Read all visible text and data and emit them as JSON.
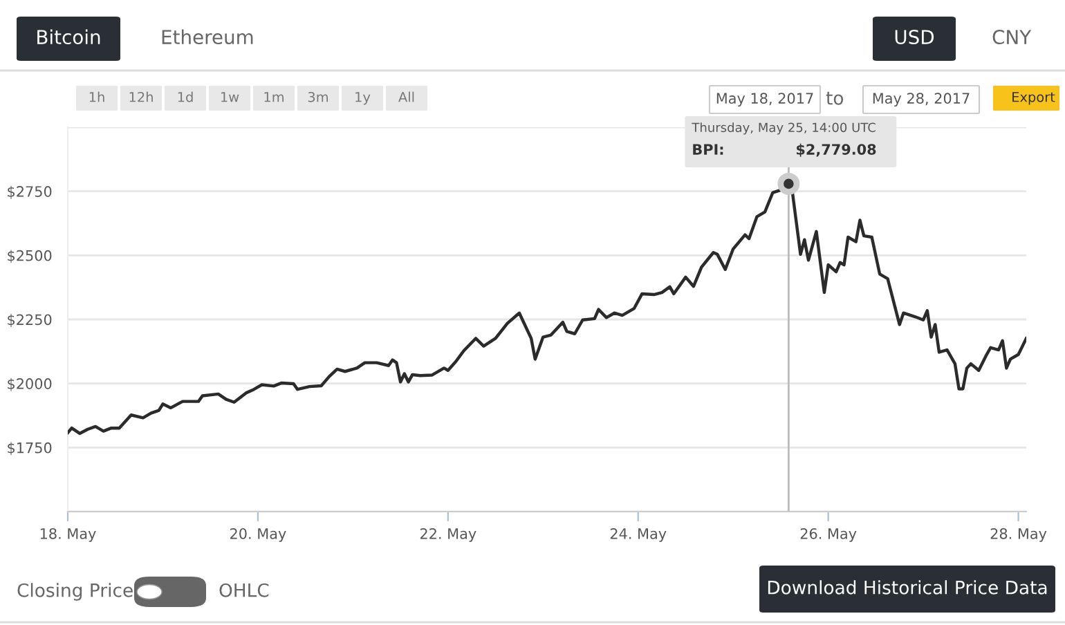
{
  "chart_data": {
    "type": "line",
    "x": [
      "2017-05-18T00:00",
      "2017-05-18T01:00",
      "2017-05-18T03:00",
      "2017-05-18T05:00",
      "2017-05-18T07:00",
      "2017-05-18T09:00",
      "2017-05-18T11:00",
      "2017-05-18T13:00",
      "2017-05-18T16:00",
      "2017-05-18T19:00",
      "2017-05-18T21:00",
      "2017-05-18T23:00",
      "2017-05-19T00:00",
      "2017-05-19T02:00",
      "2017-05-19T05:00",
      "2017-05-19T09:00",
      "2017-05-19T10:00",
      "2017-05-19T14:00",
      "2017-05-19T16:00",
      "2017-05-19T18:00",
      "2017-05-19T21:00",
      "2017-05-19T23:00",
      "2017-05-20T01:00",
      "2017-05-20T04:00",
      "2017-05-20T06:00",
      "2017-05-20T09:00",
      "2017-05-20T10:00",
      "2017-05-20T13:00",
      "2017-05-20T16:00",
      "2017-05-20T18:00",
      "2017-05-20T20:00",
      "2017-05-20T22:00",
      "2017-05-21T01:00",
      "2017-05-21T03:00",
      "2017-05-21T06:00",
      "2017-05-21T09:00",
      "2017-05-21T10:00",
      "2017-05-21T11:00",
      "2017-05-21T12:00",
      "2017-05-21T13:00",
      "2017-05-21T14:00",
      "2017-05-21T15:00",
      "2017-05-21T17:00",
      "2017-05-21T20:00",
      "2017-05-21T23:00",
      "2017-05-22T00:00",
      "2017-05-22T02:00",
      "2017-05-22T04:00",
      "2017-05-22T07:00",
      "2017-05-22T09:00",
      "2017-05-22T12:00",
      "2017-05-22T15:00",
      "2017-05-22T18:00",
      "2017-05-22T21:00",
      "2017-05-22T22:00",
      "2017-05-23T00:00",
      "2017-05-23T02:00",
      "2017-05-23T05:00",
      "2017-05-23T06:00",
      "2017-05-23T08:00",
      "2017-05-23T10:00",
      "2017-05-23T13:00",
      "2017-05-23T14:00",
      "2017-05-23T16:00",
      "2017-05-23T18:00",
      "2017-05-23T20:00",
      "2017-05-23T23:00",
      "2017-05-24T01:00",
      "2017-05-24T04:00",
      "2017-05-24T06:00",
      "2017-05-24T08:00",
      "2017-05-24T09:00",
      "2017-05-24T12:00",
      "2017-05-24T14:00",
      "2017-05-24T16:00",
      "2017-05-24T19:00",
      "2017-05-24T20:00",
      "2017-05-24T22:00",
      "2017-05-25T00:00",
      "2017-05-25T03:00",
      "2017-05-25T04:00",
      "2017-05-25T06:00",
      "2017-05-25T08:00",
      "2017-05-25T10:00",
      "2017-05-25T12:00",
      "2017-05-25T13:00",
      "2017-05-25T14:00",
      "2017-05-25T15:00",
      "2017-05-25T17:00",
      "2017-05-25T18:00",
      "2017-05-25T19:00",
      "2017-05-25T21:00",
      "2017-05-25T23:00",
      "2017-05-26T00:00",
      "2017-05-26T02:00",
      "2017-05-26T03:00",
      "2017-05-26T04:00",
      "2017-05-26T05:00",
      "2017-05-26T07:00",
      "2017-05-26T08:00",
      "2017-05-26T09:00",
      "2017-05-26T11:00",
      "2017-05-26T13:00",
      "2017-05-26T15:00",
      "2017-05-26T18:00",
      "2017-05-26T19:00",
      "2017-05-26T22:00",
      "2017-05-27T00:00",
      "2017-05-27T01:00",
      "2017-05-27T02:00",
      "2017-05-27T03:00",
      "2017-05-27T04:00",
      "2017-05-27T06:00",
      "2017-05-27T08:00",
      "2017-05-27T09:00",
      "2017-05-27T10:00",
      "2017-05-27T11:00",
      "2017-05-27T12:00",
      "2017-05-27T14:00",
      "2017-05-27T16:00",
      "2017-05-27T17:00",
      "2017-05-27T19:00",
      "2017-05-27T20:00",
      "2017-05-27T21:00",
      "2017-05-27T22:00",
      "2017-05-28T00:00",
      "2017-05-28T02:00"
    ],
    "series": [
      {
        "color": "#2b2b2b",
        "values": [
          1808,
          1826,
          1805,
          1821,
          1832,
          1814,
          1826,
          1826,
          1877,
          1866,
          1884,
          1895,
          1920,
          1905,
          1930,
          1930,
          1952,
          1959,
          1938,
          1927,
          1963,
          1977,
          1995,
          1990,
          2002,
          1999,
          1977,
          1988,
          1991,
          2027,
          2056,
          2047,
          2060,
          2081,
          2081,
          2070,
          2092,
          2081,
          2006,
          2038,
          2006,
          2034,
          2031,
          2033,
          2060,
          2051,
          2086,
          2128,
          2176,
          2146,
          2176,
          2235,
          2275,
          2176,
          2095,
          2181,
          2189,
          2239,
          2203,
          2194,
          2248,
          2253,
          2289,
          2257,
          2275,
          2266,
          2293,
          2350,
          2347,
          2355,
          2377,
          2350,
          2415,
          2379,
          2454,
          2511,
          2504,
          2445,
          2525,
          2580,
          2565,
          2651,
          2669,
          2745,
          2755,
          2768,
          2779.08,
          2741,
          2504,
          2561,
          2481,
          2593,
          2355,
          2463,
          2436,
          2472,
          2463,
          2571,
          2553,
          2637,
          2576,
          2571,
          2427,
          2409,
          2230,
          2275,
          2260,
          2248,
          2284,
          2181,
          2230,
          2122,
          2131,
          2077,
          1979,
          1979,
          2060,
          2077,
          2051,
          2113,
          2140,
          2131,
          2167,
          2060,
          2095,
          2113,
          2176
        ]
      }
    ],
    "xlim": [
      "2017-05-18T00:00",
      "2017-05-28T02:00"
    ],
    "xticks": [
      {
        "value": "2017-05-18",
        "label": "18. May"
      },
      {
        "value": "2017-05-20",
        "label": "20. May"
      },
      {
        "value": "2017-05-22",
        "label": "22. May"
      },
      {
        "value": "2017-05-24",
        "label": "24. May"
      },
      {
        "value": "2017-05-26",
        "label": "26. May"
      },
      {
        "value": "2017-05-28",
        "label": "28. May"
      }
    ],
    "ylim": [
      1500,
      3000
    ],
    "yticks": [
      {
        "value": 1500,
        "label": null
      },
      {
        "value": 1750,
        "label": "$1750"
      },
      {
        "value": 2000,
        "label": "$2000"
      },
      {
        "value": 2250,
        "label": "$2250"
      },
      {
        "value": 2500,
        "label": "$2500"
      },
      {
        "value": 2750,
        "label": "$2750"
      },
      {
        "value": 3000,
        "label": null
      }
    ],
    "grid": "y",
    "legend": false,
    "marker": "none",
    "line_style": "solid",
    "ref_lines": [
      {
        "axis": "x",
        "value": "2017-05-25T14:00",
        "color": "#bbbbbb"
      }
    ],
    "annotations": [
      "Bitcoin",
      "Ethereum",
      "USD",
      "CNY",
      "1h",
      "12h",
      "1d",
      "1w",
      "1m",
      "3m",
      "1y",
      "All",
      "May 18, 2017",
      "to",
      "May 28, 2017",
      "Export",
      "Thursday, May 25, 14:00 UTC",
      "BPI:",
      "$2,779.08",
      "Closing Price",
      "OHLC",
      "Download Historical Price Data"
    ]
  }
}
